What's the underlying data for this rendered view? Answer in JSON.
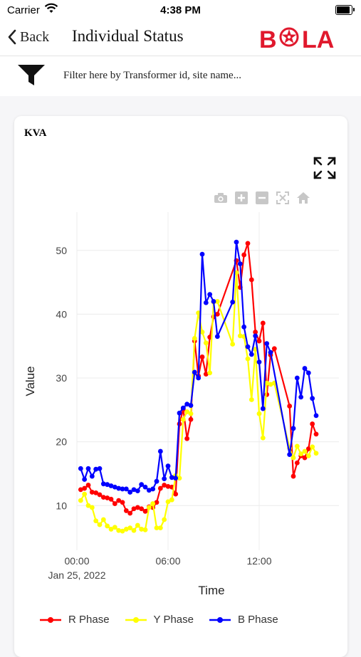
{
  "status_bar": {
    "carrier": "Carrier",
    "time": "4:38 PM"
  },
  "nav": {
    "back_label": "Back",
    "title": "Individual Status",
    "logo_text": "BOLA"
  },
  "filter": {
    "placeholder": "Filter here by Transformer id, site name..."
  },
  "card": {
    "title": "KVA"
  },
  "modebar": [
    "camera-icon",
    "zoom-in-icon",
    "zoom-out-icon",
    "autoscale-icon",
    "reset-axes-home-icon"
  ],
  "colors": {
    "r_phase": "#ff0000",
    "y_phase": "#ffff00",
    "b_phase": "#0000ff",
    "brand": "#e0192d"
  },
  "chart_data": {
    "type": "line",
    "xlabel": "Time",
    "ylabel": "Value",
    "x_ticks": [
      "00:00",
      "06:00",
      "12:00"
    ],
    "x_tick_sub": "Jan 25, 2022",
    "y_ticks": [
      10,
      20,
      30,
      40,
      50
    ],
    "xlim": [
      "00:00",
      "17:15"
    ],
    "ylim": [
      3,
      56
    ],
    "grid": true,
    "legend": "bottom",
    "series": [
      {
        "name": "R Phase",
        "color": "#ff0000",
        "points": [
          [
            "00:15",
            12.5
          ],
          [
            "00:30",
            12.7
          ],
          [
            "00:45",
            13.2
          ],
          [
            "01:00",
            12.1
          ],
          [
            "01:15",
            12.0
          ],
          [
            "01:30",
            11.7
          ],
          [
            "01:45",
            11.3
          ],
          [
            "02:00",
            11.2
          ],
          [
            "02:15",
            11.0
          ],
          [
            "02:30",
            10.3
          ],
          [
            "02:45",
            10.8
          ],
          [
            "03:00",
            10.5
          ],
          [
            "03:15",
            9.2
          ],
          [
            "03:30",
            8.8
          ],
          [
            "03:45",
            9.5
          ],
          [
            "04:00",
            9.7
          ],
          [
            "04:15",
            9.5
          ],
          [
            "04:30",
            9.1
          ],
          [
            "04:45",
            9.8
          ],
          [
            "05:00",
            9.7
          ],
          [
            "05:15",
            10.5
          ],
          [
            "05:30",
            12.7
          ],
          [
            "05:45",
            13.2
          ],
          [
            "06:00",
            13.0
          ],
          [
            "06:15",
            12.9
          ],
          [
            "06:30",
            11.8
          ],
          [
            "06:45",
            22.8
          ],
          [
            "07:00",
            25.1
          ],
          [
            "07:15",
            20.5
          ],
          [
            "07:30",
            23.5
          ],
          [
            "07:45",
            35.8
          ],
          [
            "08:00",
            30.3
          ],
          [
            "08:15",
            33.3
          ],
          [
            "08:30",
            30.6
          ],
          [
            "08:45",
            36.4
          ],
          [
            "09:00",
            39.6
          ],
          [
            "09:15",
            40.0
          ],
          [
            "10:30",
            48.4
          ],
          [
            "10:45",
            44.2
          ],
          [
            "11:00",
            49.3
          ],
          [
            "11:15",
            51.1
          ],
          [
            "11:30",
            45.4
          ],
          [
            "11:45",
            37.2
          ],
          [
            "12:00",
            35.8
          ],
          [
            "12:15",
            38.6
          ],
          [
            "12:30",
            27.4
          ],
          [
            "12:45",
            33.6
          ],
          [
            "13:00",
            34.6
          ],
          [
            "14:00",
            25.6
          ],
          [
            "14:15",
            14.6
          ],
          [
            "14:30",
            16.7
          ],
          [
            "14:45",
            17.8
          ],
          [
            "15:00",
            17.5
          ],
          [
            "15:15",
            18.9
          ],
          [
            "15:30",
            22.8
          ],
          [
            "15:45",
            21.2
          ]
        ]
      },
      {
        "name": "Y Phase",
        "color": "#ffff00",
        "points": [
          [
            "00:15",
            10.8
          ],
          [
            "00:30",
            11.8
          ],
          [
            "00:45",
            10.0
          ],
          [
            "01:00",
            9.7
          ],
          [
            "01:15",
            7.6
          ],
          [
            "01:30",
            7.0
          ],
          [
            "01:45",
            7.8
          ],
          [
            "02:00",
            6.8
          ],
          [
            "02:15",
            6.3
          ],
          [
            "02:30",
            6.6
          ],
          [
            "02:45",
            6.1
          ],
          [
            "03:00",
            6.0
          ],
          [
            "03:15",
            6.3
          ],
          [
            "03:30",
            6.5
          ],
          [
            "03:45",
            6.1
          ],
          [
            "04:00",
            6.9
          ],
          [
            "04:15",
            6.3
          ],
          [
            "04:30",
            6.2
          ],
          [
            "04:45",
            9.7
          ],
          [
            "05:00",
            10.3
          ],
          [
            "05:15",
            6.5
          ],
          [
            "05:30",
            6.5
          ],
          [
            "05:45",
            7.8
          ],
          [
            "06:00",
            10.6
          ],
          [
            "06:15",
            10.9
          ],
          [
            "06:30",
            14.7
          ],
          [
            "06:45",
            14.3
          ],
          [
            "07:00",
            23.5
          ],
          [
            "07:15",
            24.7
          ],
          [
            "07:30",
            24.4
          ],
          [
            "07:45",
            36.2
          ],
          [
            "08:00",
            40.2
          ],
          [
            "08:15",
            37.2
          ],
          [
            "08:30",
            35.5
          ],
          [
            "08:45",
            30.8
          ],
          [
            "09:00",
            41.9
          ],
          [
            "09:15",
            42.0
          ],
          [
            "10:15",
            35.3
          ],
          [
            "10:30",
            46.5
          ],
          [
            "10:45",
            36.6
          ],
          [
            "11:00",
            36.5
          ],
          [
            "11:15",
            33.0
          ],
          [
            "11:30",
            26.6
          ],
          [
            "11:45",
            34.5
          ],
          [
            "12:00",
            24.4
          ],
          [
            "12:15",
            20.6
          ],
          [
            "12:30",
            29.2
          ],
          [
            "12:45",
            29.0
          ],
          [
            "13:00",
            29.2
          ],
          [
            "14:00",
            19.0
          ],
          [
            "14:15",
            17.5
          ],
          [
            "14:30",
            19.3
          ],
          [
            "14:45",
            18.1
          ],
          [
            "15:00",
            18.5
          ],
          [
            "15:15",
            17.8
          ],
          [
            "15:30",
            19.2
          ],
          [
            "15:45",
            18.2
          ]
        ]
      },
      {
        "name": "B Phase",
        "color": "#0000ff",
        "points": [
          [
            "00:15",
            15.8
          ],
          [
            "00:30",
            14.1
          ],
          [
            "00:45",
            15.8
          ],
          [
            "01:00",
            14.6
          ],
          [
            "01:15",
            15.7
          ],
          [
            "01:30",
            15.8
          ],
          [
            "01:45",
            13.4
          ],
          [
            "02:00",
            13.3
          ],
          [
            "02:15",
            13.1
          ],
          [
            "02:30",
            12.9
          ],
          [
            "02:45",
            12.7
          ],
          [
            "03:00",
            12.6
          ],
          [
            "03:15",
            12.6
          ],
          [
            "03:30",
            12.1
          ],
          [
            "03:45",
            12.5
          ],
          [
            "04:00",
            12.3
          ],
          [
            "04:15",
            13.3
          ],
          [
            "04:30",
            12.9
          ],
          [
            "04:45",
            12.4
          ],
          [
            "05:00",
            12.6
          ],
          [
            "05:15",
            13.8
          ],
          [
            "05:30",
            18.5
          ],
          [
            "05:45",
            14.2
          ],
          [
            "06:00",
            16.2
          ],
          [
            "06:15",
            14.4
          ],
          [
            "06:30",
            14.3
          ],
          [
            "06:45",
            24.5
          ],
          [
            "07:00",
            25.3
          ],
          [
            "07:15",
            25.9
          ],
          [
            "07:30",
            25.7
          ],
          [
            "07:45",
            30.9
          ],
          [
            "08:00",
            30.0
          ],
          [
            "08:15",
            49.4
          ],
          [
            "08:30",
            41.8
          ],
          [
            "08:45",
            43.1
          ],
          [
            "09:00",
            42.0
          ],
          [
            "09:15",
            36.5
          ],
          [
            "10:15",
            41.9
          ],
          [
            "10:30",
            51.3
          ],
          [
            "10:45",
            47.9
          ],
          [
            "11:00",
            38.0
          ],
          [
            "11:15",
            34.9
          ],
          [
            "11:30",
            33.7
          ],
          [
            "11:45",
            36.6
          ],
          [
            "12:00",
            32.5
          ],
          [
            "12:15",
            25.2
          ],
          [
            "12:30",
            35.4
          ],
          [
            "12:45",
            34.0
          ],
          [
            "14:00",
            18.0
          ],
          [
            "14:15",
            22.1
          ],
          [
            "14:30",
            30.0
          ],
          [
            "14:45",
            27.0
          ],
          [
            "15:00",
            31.5
          ],
          [
            "15:15",
            30.8
          ],
          [
            "15:30",
            26.8
          ],
          [
            "15:45",
            24.1
          ]
        ]
      }
    ]
  }
}
